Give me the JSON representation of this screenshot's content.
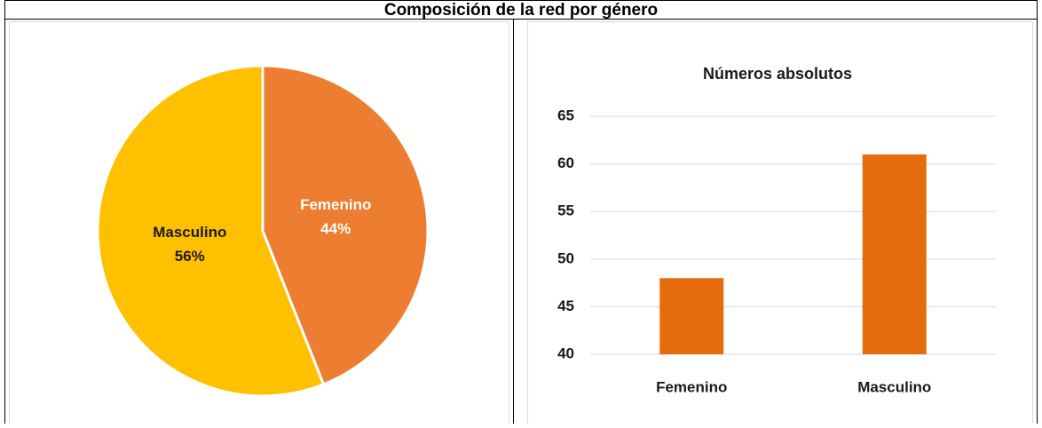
{
  "header": {
    "title": "Composición de la red por género"
  },
  "chart_data": [
    {
      "type": "pie",
      "categories": [
        "Femenino",
        "Masculino"
      ],
      "values": [
        44,
        56
      ],
      "value_labels": [
        "44%",
        "56%"
      ],
      "colors": [
        "#ed7d31",
        "#ffc000"
      ],
      "label_colors": [
        "#ffffff",
        "#1a1a1a"
      ]
    },
    {
      "type": "bar",
      "title": "Números absolutos",
      "categories": [
        "Femenino",
        "Masculino"
      ],
      "values": [
        48,
        61
      ],
      "color": "#e46c0a",
      "ylim": [
        40,
        65
      ],
      "yticks": [
        40,
        45,
        50,
        55,
        60,
        65
      ],
      "grid": true
    }
  ]
}
